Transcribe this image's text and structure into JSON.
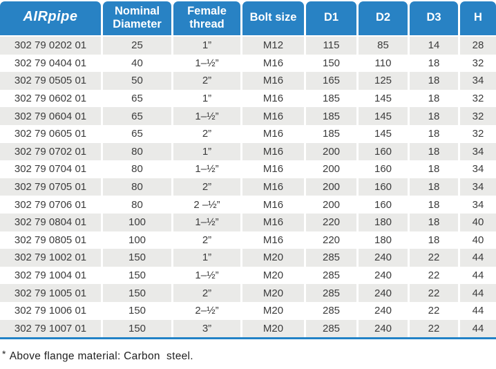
{
  "brand": "AIRpipe",
  "colors": {
    "header_blue": "#2882c4",
    "row_stripe": "#eaeae8",
    "bottom_line": "#2282c6",
    "body_text": "#3b3b3b"
  },
  "header": {
    "labels": [
      "Nominal Diameter",
      "Female thread",
      "Bolt size",
      "D1",
      "D2",
      "D3",
      "H"
    ]
  },
  "rows": [
    {
      "part": "302 79 0202 01",
      "nominal": "25",
      "thread": "1”",
      "bolt": "M12",
      "d1": "115",
      "d2": "85",
      "d3": "14",
      "h": "28"
    },
    {
      "part": "302 79 0404 01",
      "nominal": "40",
      "thread": "1–½”",
      "bolt": "M16",
      "d1": "150",
      "d2": "110",
      "d3": "18",
      "h": "32"
    },
    {
      "part": "302 79 0505 01",
      "nominal": "50",
      "thread": "2”",
      "bolt": "M16",
      "d1": "165",
      "d2": "125",
      "d3": "18",
      "h": "34"
    },
    {
      "part": "302 79 0602 01",
      "nominal": "65",
      "thread": "1”",
      "bolt": "M16",
      "d1": "185",
      "d2": "145",
      "d3": "18",
      "h": "32"
    },
    {
      "part": "302 79 0604 01",
      "nominal": "65",
      "thread": "1–½”",
      "bolt": "M16",
      "d1": "185",
      "d2": "145",
      "d3": "18",
      "h": "32"
    },
    {
      "part": "302 79 0605 01",
      "nominal": "65",
      "thread": "2”",
      "bolt": "M16",
      "d1": "185",
      "d2": "145",
      "d3": "18",
      "h": "32"
    },
    {
      "part": "302 79 0702 01",
      "nominal": "80",
      "thread": "1”",
      "bolt": "M16",
      "d1": "200",
      "d2": "160",
      "d3": "18",
      "h": "34"
    },
    {
      "part": "302 79 0704 01",
      "nominal": "80",
      "thread": "1–½”",
      "bolt": "M16",
      "d1": "200",
      "d2": "160",
      "d3": "18",
      "h": "34"
    },
    {
      "part": "302 79 0705 01",
      "nominal": "80",
      "thread": "2”",
      "bolt": "M16",
      "d1": "200",
      "d2": "160",
      "d3": "18",
      "h": "34"
    },
    {
      "part": "302 79 0706 01",
      "nominal": "80",
      "thread": "2 –½”",
      "bolt": "M16",
      "d1": "200",
      "d2": "160",
      "d3": "18",
      "h": "34"
    },
    {
      "part": "302 79 0804 01",
      "nominal": "100",
      "thread": "1–½”",
      "bolt": "M16",
      "d1": "220",
      "d2": "180",
      "d3": "18",
      "h": "40"
    },
    {
      "part": "302 79 0805 01",
      "nominal": "100",
      "thread": "2”",
      "bolt": "M16",
      "d1": "220",
      "d2": "180",
      "d3": "18",
      "h": "40"
    },
    {
      "part": "302 79 1002 01",
      "nominal": "150",
      "thread": "1”",
      "bolt": "M20",
      "d1": "285",
      "d2": "240",
      "d3": "22",
      "h": "44"
    },
    {
      "part": "302 79 1004 01",
      "nominal": "150",
      "thread": "1–½”",
      "bolt": "M20",
      "d1": "285",
      "d2": "240",
      "d3": "22",
      "h": "44"
    },
    {
      "part": "302 79 1005 01",
      "nominal": "150",
      "thread": "2”",
      "bolt": "M20",
      "d1": "285",
      "d2": "240",
      "d3": "22",
      "h": "44"
    },
    {
      "part": "302 79 1006 01",
      "nominal": "150",
      "thread": "2–½”",
      "bolt": "M20",
      "d1": "285",
      "d2": "240",
      "d3": "22",
      "h": "44"
    },
    {
      "part": "302 79 1007 01",
      "nominal": "150",
      "thread": "3”",
      "bolt": "M20",
      "d1": "285",
      "d2": "240",
      "d3": "22",
      "h": "44"
    }
  ],
  "footnote": {
    "marker": "*",
    "text": "Above flange material: Carbon  steel."
  }
}
